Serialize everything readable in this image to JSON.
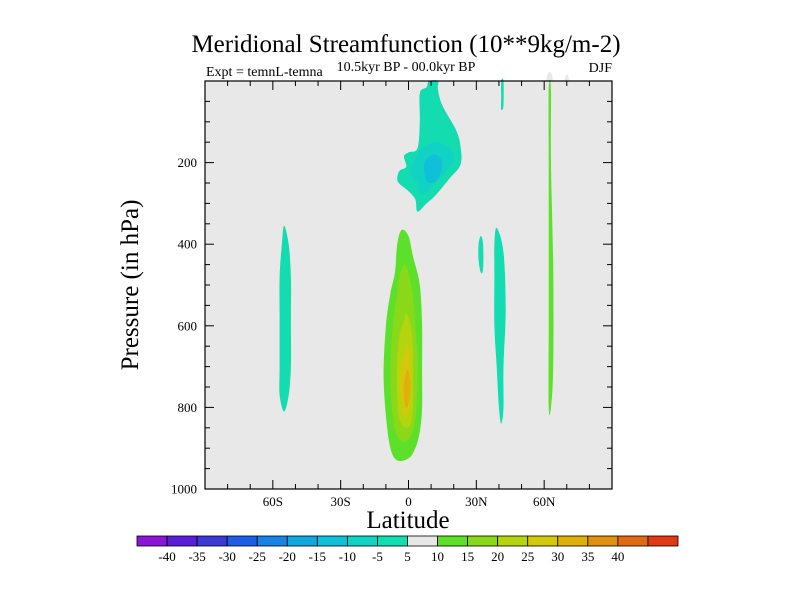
{
  "chart_data": {
    "type": "heatmap",
    "title": "Meridional Streamfunction (10**9kg/m-2)",
    "subtitle": "10.5kyr BP - 00.0kyr BP",
    "left_label": "Expt = temnL-temna",
    "right_label": "DJF",
    "xlabel": "Latitude",
    "ylabel": "Pressure (in hPa)",
    "xlim": [
      -90,
      90
    ],
    "ylim": [
      1000,
      0
    ],
    "x_ticks": [
      {
        "value": -60,
        "label": "60S"
      },
      {
        "value": -30,
        "label": "30S"
      },
      {
        "value": 0,
        "label": "0"
      },
      {
        "value": 30,
        "label": "30N"
      },
      {
        "value": 60,
        "label": "60N"
      }
    ],
    "y_ticks": [
      {
        "value": 200,
        "label": "200"
      },
      {
        "value": 400,
        "label": "400"
      },
      {
        "value": 600,
        "label": "600"
      },
      {
        "value": 800,
        "label": "800"
      },
      {
        "value": 1000,
        "label": "1000"
      }
    ],
    "background_color": "#e8e8e8",
    "levels": [
      {
        "label": "",
        "color": "#8a16d8"
      },
      {
        "label": "-40",
        "color": "#5a1ed8"
      },
      {
        "label": "-35",
        "color": "#3a3ad8"
      },
      {
        "label": "-30",
        "color": "#1e5ee6"
      },
      {
        "label": "-25",
        "color": "#1882e6"
      },
      {
        "label": "-20",
        "color": "#10a6e0"
      },
      {
        "label": "-15",
        "color": "#10c0d8"
      },
      {
        "label": "-10",
        "color": "#12d2c4"
      },
      {
        "label": "-5",
        "color": "#12dcb0"
      },
      {
        "label": "5",
        "color": "#e8e8e8"
      },
      {
        "label": "10",
        "color": "#5ce02a"
      },
      {
        "label": "15",
        "color": "#8ad81a"
      },
      {
        "label": "20",
        "color": "#b4d40e"
      },
      {
        "label": "25",
        "color": "#d4c80a"
      },
      {
        "label": "30",
        "color": "#e0b00a"
      },
      {
        "label": "35",
        "color": "#e0900e"
      },
      {
        "label": "40",
        "color": "#e06a12"
      },
      {
        "label": "",
        "color": "#e03a14"
      }
    ],
    "features": [
      {
        "name": "upper-tropical-neg-cell",
        "level": -5,
        "outline": [
          [
            5,
            30
          ],
          [
            8,
            15
          ],
          [
            9,
            0
          ],
          [
            13,
            0
          ],
          [
            13,
            20
          ],
          [
            15,
            60
          ],
          [
            21,
            120
          ],
          [
            23,
            160
          ],
          [
            23,
            205
          ],
          [
            18,
            240
          ],
          [
            12,
            280
          ],
          [
            8,
            300
          ],
          [
            4,
            320
          ],
          [
            3,
            290
          ],
          [
            0,
            270
          ],
          [
            -4,
            252
          ],
          [
            -5,
            240
          ],
          [
            -4,
            220
          ],
          [
            -1,
            210
          ],
          [
            -2,
            185
          ],
          [
            0,
            175
          ],
          [
            4,
            165
          ],
          [
            5,
            100
          ]
        ]
      },
      {
        "name": "upper-tropical-neg-core",
        "level": -10,
        "outline": [
          [
            5,
            170
          ],
          [
            9,
            155
          ],
          [
            13,
            150
          ],
          [
            19,
            170
          ],
          [
            20,
            195
          ],
          [
            16,
            225
          ],
          [
            12,
            250
          ],
          [
            8,
            272
          ],
          [
            5,
            275
          ],
          [
            4,
            250
          ],
          [
            1,
            230
          ],
          [
            2,
            200
          ]
        ]
      },
      {
        "name": "upper-tropical-neg-inner",
        "level": -15,
        "outline": [
          [
            7,
            200
          ],
          [
            10,
            182
          ],
          [
            13,
            182
          ],
          [
            15,
            205
          ],
          [
            13,
            240
          ],
          [
            10,
            250
          ],
          [
            8,
            245
          ],
          [
            7,
            225
          ]
        ]
      },
      {
        "name": "south-neg-strip",
        "level": -5,
        "outline": [
          [
            -55,
            355
          ],
          [
            -53,
            400
          ],
          [
            -52,
            480
          ],
          [
            -52,
            580
          ],
          [
            -52,
            700
          ],
          [
            -53,
            770
          ],
          [
            -55,
            810
          ],
          [
            -57,
            770
          ],
          [
            -57,
            700
          ],
          [
            -57,
            580
          ],
          [
            -57,
            480
          ],
          [
            -56,
            400
          ]
        ]
      },
      {
        "name": "hadley-pos-cell",
        "level": 5,
        "outline": [
          [
            -4,
            310
          ],
          [
            -1,
            315
          ],
          [
            1,
            330
          ],
          [
            2,
            360
          ],
          [
            6,
            450
          ],
          [
            8,
            520
          ],
          [
            10,
            620
          ],
          [
            11,
            720
          ],
          [
            10,
            820
          ],
          [
            9,
            880
          ],
          [
            7,
            930
          ],
          [
            5,
            960
          ],
          [
            0,
            975
          ],
          [
            -6,
            975
          ],
          [
            -12,
            950
          ],
          [
            -14,
            900
          ],
          [
            -14,
            800
          ],
          [
            -15,
            700
          ],
          [
            -14,
            600
          ],
          [
            -12,
            500
          ],
          [
            -8,
            470
          ],
          [
            -7,
            420
          ],
          [
            -7,
            360
          ],
          [
            -6,
            320
          ]
        ]
      },
      {
        "name": "hadley-pos-l10",
        "level": 10,
        "outline": [
          [
            -3,
            365
          ],
          [
            0,
            380
          ],
          [
            2,
            430
          ],
          [
            5,
            500
          ],
          [
            6,
            600
          ],
          [
            6,
            700
          ],
          [
            6,
            800
          ],
          [
            5,
            860
          ],
          [
            3,
            900
          ],
          [
            0,
            925
          ],
          [
            -5,
            930
          ],
          [
            -8,
            900
          ],
          [
            -10,
            820
          ],
          [
            -11,
            720
          ],
          [
            -10,
            600
          ],
          [
            -8,
            520
          ],
          [
            -6,
            470
          ],
          [
            -5,
            400
          ]
        ]
      },
      {
        "name": "hadley-pos-l15",
        "level": 15,
        "outline": [
          [
            -2,
            450
          ],
          [
            0,
            470
          ],
          [
            2,
            530
          ],
          [
            3,
            600
          ],
          [
            4,
            680
          ],
          [
            4,
            760
          ],
          [
            3,
            830
          ],
          [
            1,
            870
          ],
          [
            -2,
            885
          ],
          [
            -5,
            870
          ],
          [
            -7,
            820
          ],
          [
            -8,
            720
          ],
          [
            -7,
            600
          ],
          [
            -5,
            520
          ],
          [
            -4,
            480
          ]
        ]
      },
      {
        "name": "hadley-pos-l20",
        "level": 20,
        "outline": [
          [
            -1,
            570
          ],
          [
            1,
            600
          ],
          [
            2,
            660
          ],
          [
            2,
            740
          ],
          [
            2,
            800
          ],
          [
            1,
            840
          ],
          [
            -1,
            850
          ],
          [
            -4,
            830
          ],
          [
            -5,
            770
          ],
          [
            -5,
            690
          ],
          [
            -4,
            620
          ],
          [
            -2,
            590
          ]
        ]
      },
      {
        "name": "hadley-pos-l25",
        "level": 25,
        "outline": [
          [
            0,
            650
          ],
          [
            1,
            690
          ],
          [
            1,
            760
          ],
          [
            0,
            810
          ],
          [
            -2,
            820
          ],
          [
            -3,
            790
          ],
          [
            -4,
            740
          ],
          [
            -3,
            690
          ],
          [
            -1,
            660
          ]
        ]
      },
      {
        "name": "hadley-pos-core",
        "level": 30,
        "outline": [
          [
            0,
            710
          ],
          [
            1,
            750
          ],
          [
            0,
            790
          ],
          [
            -1,
            800
          ],
          [
            -2,
            780
          ],
          [
            -2,
            740
          ],
          [
            -1,
            715
          ]
        ]
      },
      {
        "name": "pos-strip-30S",
        "level": 5,
        "outline": [
          [
            -26,
            250
          ],
          [
            -25,
            300
          ],
          [
            -25,
            340
          ],
          [
            -26,
            345
          ],
          [
            -27,
            300
          ],
          [
            -27,
            260
          ]
        ]
      },
      {
        "name": "pos-strip-10N",
        "level": 5,
        "outline": [
          [
            11,
            400
          ],
          [
            13,
            410
          ],
          [
            15,
            430
          ],
          [
            17,
            480
          ],
          [
            16,
            520
          ],
          [
            14,
            570
          ],
          [
            12,
            600
          ],
          [
            11,
            650
          ],
          [
            10,
            700
          ],
          [
            9,
            640
          ],
          [
            10,
            560
          ],
          [
            10,
            480
          ]
        ]
      },
      {
        "name": "pos-strip-18N",
        "level": 5,
        "outline": [
          [
            18,
            740
          ],
          [
            20,
            750
          ],
          [
            20,
            800
          ],
          [
            19,
            830
          ],
          [
            18,
            840
          ],
          [
            17,
            800
          ],
          [
            17,
            760
          ]
        ]
      },
      {
        "name": "neg-strip-32N",
        "level": -5,
        "outline": [
          [
            32,
            380
          ],
          [
            33,
            400
          ],
          [
            33,
            460
          ],
          [
            32,
            470
          ],
          [
            31,
            440
          ],
          [
            31,
            400
          ]
        ]
      },
      {
        "name": "neg-strip-40N",
        "level": -5,
        "outline": [
          [
            39,
            360
          ],
          [
            42,
            420
          ],
          [
            43,
            560
          ],
          [
            42,
            700
          ],
          [
            42,
            800
          ],
          [
            41,
            840
          ],
          [
            40,
            800
          ],
          [
            39,
            700
          ],
          [
            38,
            600
          ],
          [
            38,
            480
          ],
          [
            38,
            400
          ]
        ]
      },
      {
        "name": "neg-strip-42N-top",
        "level": -5,
        "outline": [
          [
            41,
            0
          ],
          [
            42,
            0
          ],
          [
            42,
            60
          ],
          [
            41,
            70
          ],
          [
            41,
            40
          ]
        ]
      },
      {
        "name": "pos-strip-52N",
        "level": 5,
        "outline": [
          [
            52,
            110
          ],
          [
            54,
            150
          ],
          [
            55,
            300
          ],
          [
            55,
            500
          ],
          [
            55,
            700
          ],
          [
            55,
            850
          ],
          [
            54,
            935
          ],
          [
            53,
            940
          ],
          [
            52,
            850
          ],
          [
            52,
            700
          ],
          [
            52,
            500
          ],
          [
            52,
            300
          ],
          [
            51,
            150
          ]
        ]
      },
      {
        "name": "pos-strip-58N",
        "level": 5,
        "outline": [
          [
            57,
            330
          ],
          [
            58,
            360
          ],
          [
            59,
            450
          ],
          [
            60,
            600
          ],
          [
            60,
            800
          ],
          [
            59,
            900
          ],
          [
            58,
            920
          ],
          [
            57,
            900
          ],
          [
            57,
            800
          ],
          [
            57,
            600
          ],
          [
            57,
            450
          ]
        ]
      },
      {
        "name": "pos-strip-62N",
        "level": 5,
        "outline": [
          [
            61,
            0
          ],
          [
            64,
            0
          ],
          [
            64,
            150
          ],
          [
            65,
            450
          ],
          [
            65,
            700
          ],
          [
            64,
            850
          ],
          [
            63,
            960
          ],
          [
            62,
            960
          ],
          [
            62,
            850
          ],
          [
            61,
            700
          ],
          [
            61,
            450
          ],
          [
            61,
            200
          ]
        ]
      },
      {
        "name": "pos-strip-62N-inner",
        "level": 10,
        "outline": [
          [
            62,
            20
          ],
          [
            63,
            20
          ],
          [
            63,
            200
          ],
          [
            64,
            450
          ],
          [
            64,
            700
          ],
          [
            63,
            800
          ],
          [
            62,
            800
          ],
          [
            62,
            600
          ],
          [
            62,
            400
          ],
          [
            62,
            200
          ]
        ]
      },
      {
        "name": "pos-strip-69N",
        "level": 5,
        "outline": [
          [
            69,
            0
          ],
          [
            71,
            0
          ],
          [
            71,
            150
          ],
          [
            71,
            400
          ],
          [
            70,
            600
          ],
          [
            70,
            720
          ],
          [
            69,
            700
          ],
          [
            69,
            500
          ],
          [
            69,
            300
          ],
          [
            69,
            100
          ]
        ]
      }
    ]
  }
}
